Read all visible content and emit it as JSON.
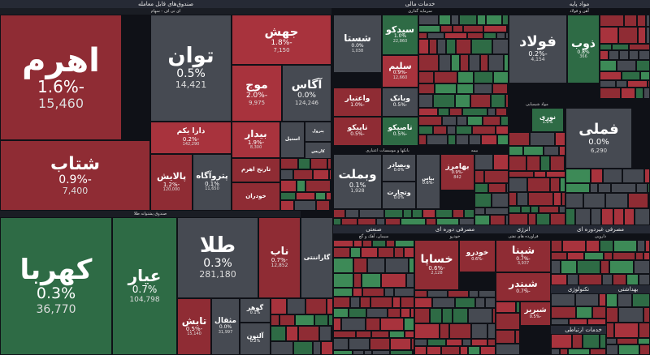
{
  "colors": {
    "dark_red": "#8f2c34",
    "red": "#a8333d",
    "neutral": "#464a52",
    "green": "#2e6b45",
    "bright_green": "#3d8a57"
  },
  "sectors": {
    "funds": {
      "title": "صندوق‌های قابل معامله",
      "sub": "ای تی اف - سهام"
    },
    "gold_funds": {
      "sub": "صندوق پشتوانه طلا"
    },
    "financial": {
      "title": "خدمات مالی",
      "sub": "سرمایه گذاری"
    },
    "basic": {
      "title": "مواد پایه",
      "sub": "آهن و فولاد"
    },
    "brokerage": {
      "sub": "بانکها و موسسات اعتباری"
    },
    "insurance": {
      "sub": "بیمه"
    },
    "chemical": {
      "sub": "مواد شیمیایی"
    },
    "industrial": {
      "title": "صنعتی",
      "sub": "سیمان، آهک و گچ"
    },
    "durables": {
      "title": "مصرفی دوره ای",
      "sub": "خودرو"
    },
    "energy": {
      "title": "انرژی",
      "sub": "فراورده های نفتی"
    },
    "nondurables": {
      "title": "مصرفی غیردوره ای",
      "sub": "دارویی"
    },
    "tech": {
      "title": "تکنولوژی"
    },
    "health": {
      "title": "بهداشتی"
    },
    "telecom": {
      "title": "خدمات ارتباطی"
    },
    "footer_small": {
      "sub": "ساخت محصولات فلزی"
    }
  },
  "tiles": [
    {
      "name": "اهرم",
      "change": "-1.6%",
      "value": "15,460"
    },
    {
      "name": "شتاب",
      "change": "-0.9%",
      "value": "7,400"
    },
    {
      "name": "توان",
      "change": "0.5%",
      "value": "14,421"
    },
    {
      "name": "جهش",
      "change": "-1.8%",
      "value": "7,150"
    },
    {
      "name": "موج",
      "change": "-2.0%",
      "value": "9,975"
    },
    {
      "name": "آگاس",
      "change": "0.0%",
      "value": "124,246"
    },
    {
      "name": "دارا یکم",
      "change": "-0.2%",
      "value": "142,290"
    },
    {
      "name": "پالایش",
      "change": "-1.2%",
      "value": "120,000"
    },
    {
      "name": "پتروآگاه",
      "change": "0.1%",
      "value": "11,650"
    },
    {
      "name": "بیدار",
      "change": "-1.9%",
      "value": "8,300"
    },
    {
      "name": "کهربا",
      "change": "0.3%",
      "value": "36,770"
    },
    {
      "name": "عیار",
      "change": "0.7%",
      "value": "104,798"
    },
    {
      "name": "طلا",
      "change": "0.3%",
      "value": "281,180"
    },
    {
      "name": "ناب",
      "change": "-0.7%",
      "value": "12,852"
    },
    {
      "name": "تابش",
      "change": "-0.5%",
      "value": "15,140"
    },
    {
      "name": "مثقال",
      "change": "0.0%",
      "value": "31,997"
    },
    {
      "name": "گوهر",
      "change": "0.1%",
      "value": ""
    },
    {
      "name": "آلتون",
      "change": "0.2%",
      "value": ""
    },
    {
      "name": "سیدکو",
      "change": "1.0%",
      "value": "22,860"
    },
    {
      "name": "شستا",
      "change": "0.0%",
      "value": "1,038"
    },
    {
      "name": "سلیم",
      "change": "-0.9%",
      "value": "12,660"
    },
    {
      "name": "فولاد",
      "change": "-0.2%",
      "value": "4,154"
    },
    {
      "name": "ذوب",
      "change": "0.8%",
      "value": "366"
    },
    {
      "name": "فملی",
      "change": "0.0%",
      "value": "6,290"
    },
    {
      "name": "وبملت",
      "change": "0.1%",
      "value": "1,928"
    },
    {
      "name": "بپاس",
      "change": "-0.6%",
      "value": ""
    },
    {
      "name": "بهامرز",
      "change": "-0.9%",
      "value": "842"
    },
    {
      "name": "خساپا",
      "change": "-0.6%",
      "value": "2,128"
    },
    {
      "name": "خودرو",
      "change": "-0.6%",
      "value": ""
    },
    {
      "name": "شپنا",
      "change": "-0.7%",
      "value": "3,937"
    },
    {
      "name": "شبندر",
      "change": "-0.7%",
      "value": ""
    },
    {
      "name": "شبریز",
      "change": "-0.5%",
      "value": ""
    },
    {
      "name": "کگل",
      "change": "0.0%",
      "value": ""
    },
    {
      "name": "نوری",
      "change": "1.0%",
      "value": ""
    },
    {
      "name": "وبصادر",
      "change": "0.0%",
      "value": ""
    },
    {
      "name": "وتجارت",
      "change": "0.0%",
      "value": ""
    },
    {
      "name": "وبانک",
      "change": "-0.5%",
      "value": ""
    },
    {
      "name": "واعتبار",
      "change": "-1.0%",
      "value": ""
    },
    {
      "name": "تاپیکو",
      "change": "-0.5%",
      "value": ""
    },
    {
      "name": "تاصیکو",
      "change": "-0.5%",
      "value": ""
    },
    {
      "name": "گاراننتی",
      "change": "",
      "value": ""
    },
    {
      "name": "پترول",
      "change": "",
      "value": ""
    },
    {
      "name": "استیل",
      "change": "",
      "value": ""
    },
    {
      "name": "کاریس",
      "change": "",
      "value": ""
    },
    {
      "name": "خودران",
      "change": "",
      "value": ""
    },
    {
      "name": "تارنج اهرم",
      "change": "",
      "value": ""
    }
  ]
}
